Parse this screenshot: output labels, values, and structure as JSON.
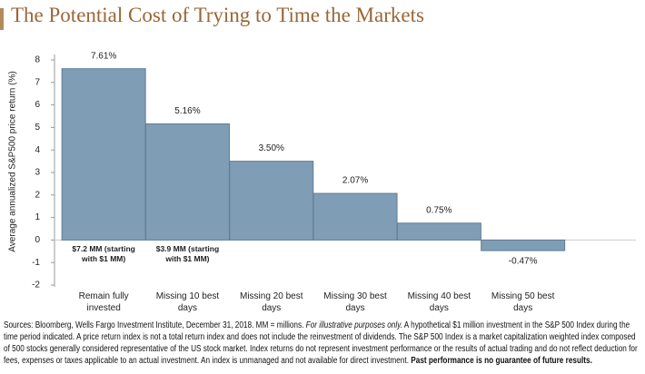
{
  "chart_data": {
    "type": "bar",
    "title": "The Potential Cost of Trying to Time the Markets",
    "y_label": "Average annualized S&P500 price return (%)",
    "categories": [
      "Remain fully invested",
      "Missing 10 best days",
      "Missing 20 best days",
      "Missing 30 best days",
      "Missing 40 best days",
      "Missing 50 best days"
    ],
    "values": [
      7.61,
      5.16,
      3.5,
      2.07,
      0.75,
      -0.47
    ],
    "value_labels": [
      "7.61%",
      "5.16%",
      "3.50%",
      "2.07%",
      "0.75%",
      "-0.47%"
    ],
    "color": "#7f9db4",
    "ylim": [
      -2,
      8
    ],
    "yticks": [
      -2,
      -1,
      0,
      1,
      2,
      3,
      4,
      5,
      6,
      7,
      8
    ],
    "grid": false,
    "annotations": [
      "$7.2 MM (starting with $1 MM)",
      "$3.9 MM (starting with $1 MM)"
    ],
    "footnote": [
      "Sources: Bloomberg, Wells Fargo Investment Institute, December 31, 2018. MM = millions. ",
      "For illustrative purposes only.",
      " A hypothetical $1 million investment in the S&P 500 Index during the time period indicated. A price return index is not a total return index and does not include the reinvestment of dividends. The S&P 500 Index is a market capitalization weighted index composed of 500 stocks generally considered representative of the US stock market. Index returns do not represent investment performance or the results of actual trading and do not reflect deduction for fees, expenses or taxes applicable to an actual investment. An index is unmanaged and not available for direct investment. ",
      "Past performance is no guarantee of future results."
    ]
  }
}
